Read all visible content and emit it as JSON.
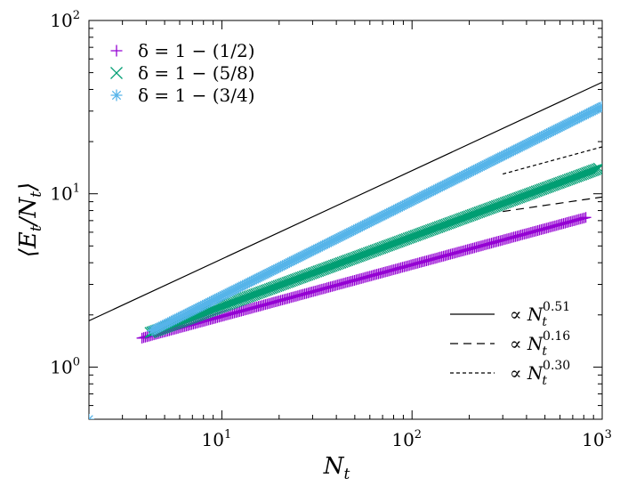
{
  "chart_data": {
    "type": "scatter",
    "x_scale": "log",
    "y_scale": "log",
    "xlim": [
      2,
      1000
    ],
    "ylim": [
      0.5,
      100
    ],
    "xlabel": "N_t",
    "ylabel": "⟨E_t/N_t⟩",
    "x_major_ticks": [
      {
        "value": 10,
        "base": "10",
        "exp": "1"
      },
      {
        "value": 100,
        "base": "10",
        "exp": "2"
      },
      {
        "value": 1000,
        "base": "10",
        "exp": "3"
      }
    ],
    "y_major_ticks": [
      {
        "value": 1,
        "base": "10",
        "exp": "0"
      },
      {
        "value": 10,
        "base": "10",
        "exp": "1"
      },
      {
        "value": 100,
        "base": "10",
        "exp": "2"
      }
    ],
    "grid": false,
    "legend_position": "top-left",
    "series": [
      {
        "name": "δ = 1 − (1/2)",
        "marker": "plus",
        "color": "#9400d3",
        "x_start": 3.8,
        "x_end": 820,
        "y_start": 1.47,
        "y_end": 7.3,
        "fit_exponent": 0.3
      },
      {
        "name": "δ = 1 − (5/8)",
        "marker": "cross",
        "color": "#009e73",
        "x_start": 4.2,
        "x_end": 960,
        "y_start": 1.58,
        "y_end": 14.0,
        "fit_exponent": 0.4
      },
      {
        "name": "δ = 1 − (3/4)",
        "marker": "star",
        "color": "#56b4e9",
        "x_start": 4.3,
        "x_end": 1000,
        "y_start": 1.62,
        "y_end": 32.0,
        "fit_exponent": 0.55
      }
    ],
    "first_point": {
      "x": 2,
      "y": 0.5,
      "color": "#56b4e9"
    },
    "reference_lines": [
      {
        "label_prefix": "∝ ",
        "label_base": "N",
        "label_sub": "t",
        "label_exp": "0.51",
        "style": "solid",
        "exponent": 0.51,
        "x_from": 2,
        "x_to": 1000,
        "y_at_x_from": 1.85
      },
      {
        "label_prefix": "∝ ",
        "label_base": "N",
        "label_sub": "t",
        "label_exp": "0.16",
        "style": "dashed",
        "exponent": 0.16,
        "x_from": 300,
        "x_to": 1000,
        "y_at_x_from": 7.9
      },
      {
        "label_prefix": "∝ ",
        "label_base": "N",
        "label_sub": "t",
        "label_exp": "0.30",
        "style": "dotted",
        "exponent": 0.3,
        "x_from": 300,
        "x_to": 1000,
        "y_at_x_from": 13.0
      }
    ]
  }
}
